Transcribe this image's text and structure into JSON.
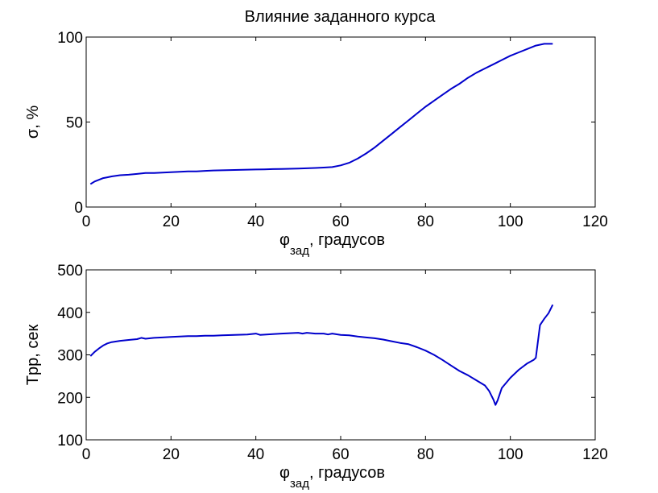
{
  "figure_title": "Влияние заданного курса",
  "chart_data": [
    {
      "type": "line",
      "title": "",
      "xlabel": "φ",
      "xlabel_subscript": "зад",
      "xlabel_suffix": ", градусов",
      "ylabel": "σ, %",
      "xlim": [
        0,
        120
      ],
      "ylim": [
        0,
        100
      ],
      "xticks": [
        0,
        20,
        40,
        60,
        80,
        100,
        120
      ],
      "yticks": [
        0,
        50,
        100
      ],
      "grid": false,
      "line_color": "#0000cc",
      "series": [
        {
          "x": [
            1,
            2,
            3,
            4,
            5,
            6,
            8,
            10,
            12,
            14,
            16,
            18,
            20,
            22,
            24,
            26,
            28,
            30,
            32,
            35,
            38,
            40,
            42,
            44,
            46,
            48,
            50,
            52,
            54,
            56,
            58,
            60,
            62,
            64,
            66,
            68,
            70,
            72,
            74,
            76,
            78,
            80,
            82,
            84,
            86,
            88,
            90,
            92,
            94,
            96,
            98,
            100,
            102,
            104,
            106,
            108,
            110
          ],
          "values": [
            13.5,
            15,
            16,
            17,
            17.5,
            18,
            18.7,
            19,
            19.5,
            20,
            20,
            20.3,
            20.5,
            20.7,
            21,
            21,
            21.3,
            21.5,
            21.6,
            21.8,
            22,
            22.1,
            22.2,
            22.3,
            22.4,
            22.5,
            22.6,
            22.8,
            23,
            23.2,
            23.5,
            24.5,
            26,
            28.5,
            31.5,
            35,
            39,
            43,
            47,
            51,
            55,
            59,
            62.5,
            66,
            69.5,
            72.5,
            76,
            79,
            81.5,
            84,
            86.5,
            89,
            91,
            93,
            95,
            96,
            96
          ]
        }
      ]
    },
    {
      "type": "line",
      "title": "",
      "xlabel": "φ",
      "xlabel_subscript": "зад",
      "xlabel_suffix": ", градусов",
      "ylabel": "Tрр, сек",
      "xlim": [
        0,
        120
      ],
      "ylim": [
        100,
        500
      ],
      "xticks": [
        0,
        20,
        40,
        60,
        80,
        100,
        120
      ],
      "yticks": [
        100,
        200,
        300,
        400,
        500
      ],
      "grid": false,
      "line_color": "#0000cc",
      "series": [
        {
          "x": [
            1,
            2,
            3,
            4,
            5,
            6,
            8,
            10,
            12,
            13,
            14,
            16,
            18,
            20,
            22,
            24,
            26,
            28,
            30,
            32,
            35,
            38,
            40,
            41,
            44,
            46,
            48,
            50,
            51,
            52,
            54,
            56,
            57,
            58,
            60,
            62,
            64,
            66,
            68,
            70,
            72,
            74,
            76,
            78,
            80,
            82,
            84,
            86,
            88,
            90,
            92,
            94,
            95,
            96,
            96.5,
            97,
            98,
            100,
            102,
            104,
            105.5,
            106,
            107,
            108,
            109,
            110
          ],
          "values": [
            297,
            307,
            315,
            322,
            327,
            330,
            333,
            335,
            337,
            340,
            338,
            340,
            341,
            342,
            343,
            344,
            344,
            345,
            345,
            346,
            347,
            348,
            350,
            347,
            349,
            350,
            351,
            352,
            350,
            352,
            350,
            350,
            348,
            350,
            347,
            346,
            343,
            341,
            339,
            336,
            332,
            328,
            325,
            318,
            310,
            300,
            288,
            275,
            262,
            252,
            240,
            228,
            215,
            195,
            182,
            193,
            222,
            246,
            265,
            280,
            288,
            293,
            370,
            385,
            398,
            418
          ]
        }
      ]
    }
  ]
}
